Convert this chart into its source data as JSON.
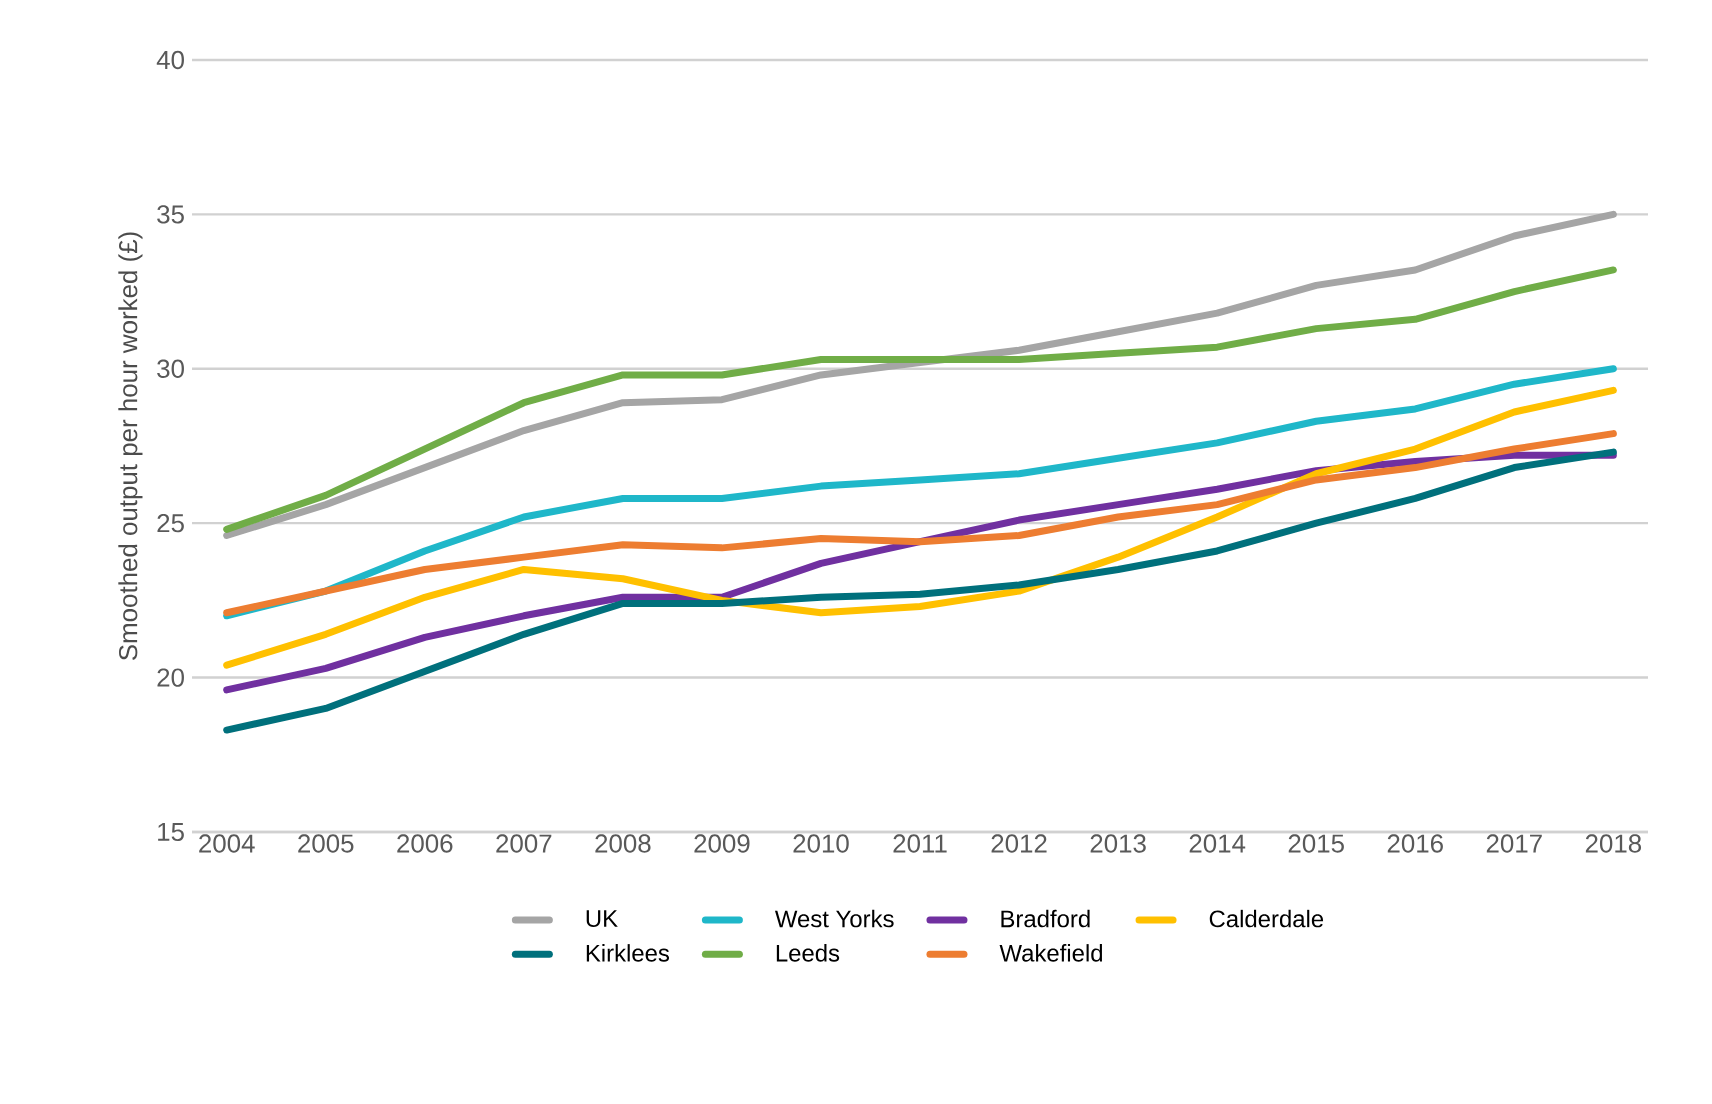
{
  "chart_data": {
    "type": "line",
    "ylabel": "Smoothed output per hour worked (£)",
    "categories": [
      "2004",
      "2005",
      "2006",
      "2007",
      "2008",
      "2009",
      "2010",
      "2011",
      "2012",
      "2013",
      "2014",
      "2015",
      "2016",
      "2017",
      "2018"
    ],
    "ylim": [
      15,
      40
    ],
    "yticks": [
      15,
      20,
      25,
      30,
      35,
      40
    ],
    "grid": "y",
    "legend": "bottom",
    "marker": "none",
    "line_style": "solid",
    "series": [
      {
        "name": "UK",
        "color": "#a5a5a5",
        "values": [
          24.6,
          25.6,
          26.8,
          28.0,
          28.9,
          29.0,
          29.8,
          30.2,
          30.6,
          31.2,
          31.8,
          32.7,
          33.2,
          34.3,
          35.0
        ]
      },
      {
        "name": "West Yorks",
        "color": "#1fb7c9",
        "values": [
          22.0,
          22.8,
          24.1,
          25.2,
          25.8,
          25.8,
          26.2,
          26.4,
          26.6,
          27.1,
          27.6,
          28.3,
          28.7,
          29.5,
          30.0
        ]
      },
      {
        "name": "Bradford",
        "color": "#7030a0",
        "values": [
          19.6,
          20.3,
          21.3,
          22.0,
          22.6,
          22.6,
          23.7,
          24.4,
          25.1,
          25.6,
          26.1,
          26.7,
          27.0,
          27.2,
          27.2
        ]
      },
      {
        "name": "Calderdale",
        "color": "#ffc000",
        "values": [
          20.4,
          21.4,
          22.6,
          23.5,
          23.2,
          22.5,
          22.1,
          22.3,
          22.8,
          23.9,
          25.2,
          26.6,
          27.4,
          28.6,
          29.3
        ]
      },
      {
        "name": "Kirklees",
        "color": "#00707c",
        "values": [
          18.3,
          19.0,
          20.2,
          21.4,
          22.4,
          22.4,
          22.6,
          22.7,
          23.0,
          23.5,
          24.1,
          25.0,
          25.8,
          26.8,
          27.3
        ]
      },
      {
        "name": "Leeds",
        "color": "#70ad47",
        "values": [
          24.8,
          25.9,
          27.4,
          28.9,
          29.8,
          29.8,
          30.3,
          30.3,
          30.3,
          30.5,
          30.7,
          31.3,
          31.6,
          32.5,
          33.2
        ]
      },
      {
        "name": "Wakefield",
        "color": "#ed7d31",
        "values": [
          22.1,
          22.8,
          23.5,
          23.9,
          24.3,
          24.2,
          24.5,
          24.4,
          24.6,
          25.2,
          25.6,
          26.4,
          26.8,
          27.4,
          27.9
        ]
      }
    ]
  }
}
